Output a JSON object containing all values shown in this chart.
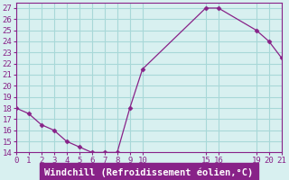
{
  "x": [
    0,
    1,
    2,
    3,
    4,
    5,
    6,
    7,
    8,
    9,
    10,
    15,
    16,
    19,
    20,
    21
  ],
  "y": [
    18,
    17.5,
    16.5,
    16,
    15,
    14.5,
    14,
    14,
    14,
    18,
    21.5,
    27,
    27,
    25,
    24,
    22.5
  ],
  "line_color": "#882288",
  "marker": "D",
  "marker_size": 2.5,
  "bg_color": "#d8f0f0",
  "grid_color": "#a8d8d8",
  "xlabel": "Windchill (Refroidissement éolien,°C)",
  "xlabel_color": "#ffffff",
  "xlabel_bg_color": "#882288",
  "xlabel_fontsize": 7.5,
  "tick_color": "#882288",
  "tick_fontsize": 6.5,
  "xlim": [
    0,
    21
  ],
  "ylim": [
    14,
    27.5
  ],
  "xticks": [
    0,
    1,
    2,
    3,
    4,
    5,
    6,
    7,
    8,
    9,
    10,
    15,
    16,
    19,
    20,
    21
  ],
  "yticks": [
    14,
    15,
    16,
    17,
    18,
    19,
    20,
    21,
    22,
    23,
    24,
    25,
    26,
    27
  ]
}
